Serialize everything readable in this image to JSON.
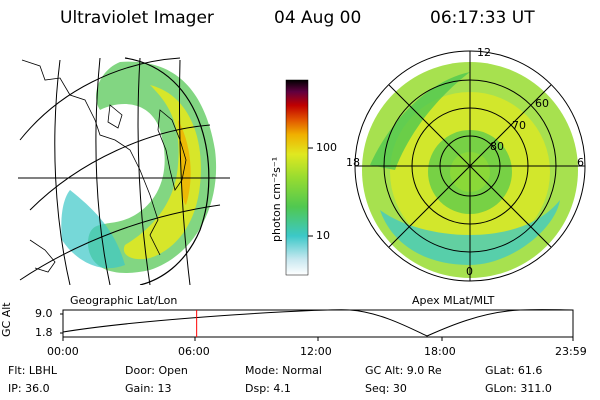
{
  "header": {
    "instrument": "Ultraviolet Imager",
    "date": "04 Aug 00",
    "time": "06:17:33 UT"
  },
  "left_panel": {
    "caption": "Geographic Lat/Lon"
  },
  "right_panel": {
    "caption": "Apex MLat/MLT",
    "mlt_labels": [
      "12",
      "18",
      "6",
      "0"
    ],
    "mlat_labels": [
      "60",
      "70",
      "80"
    ]
  },
  "colorbar": {
    "unit_label": "photon cm⁻²s⁻¹",
    "ticks": [
      "100",
      "10"
    ],
    "scale": "log",
    "colors": [
      "#ffffff",
      "#c8e8f0",
      "#3cc8c8",
      "#50c850",
      "#98dc30",
      "#e0e820",
      "#f0b000",
      "#e05000",
      "#c00000",
      "#600040",
      "#000000"
    ]
  },
  "altitude_plot": {
    "ylabel": "GC Alt",
    "yticks": [
      "9.0",
      "1.8"
    ],
    "xticks": [
      "00:00",
      "06:00",
      "12:00",
      "18:00",
      "23:59"
    ],
    "marker_hours": 6.29,
    "marker_color": "#ff0000"
  },
  "footer": {
    "row1": {
      "flt": "Flt: LBHL",
      "door": "Door: Open",
      "mode": "Mode: Normal",
      "gcalt": "GC Alt: 9.0 Re",
      "glat": "GLat:  61.6"
    },
    "row2": {
      "ip": "IP: 36.0",
      "gain": "Gain: 13",
      "dsp": "Dsp:     4.1",
      "seq": "Seq: 30",
      "glon": "GLon: 311.0"
    }
  }
}
